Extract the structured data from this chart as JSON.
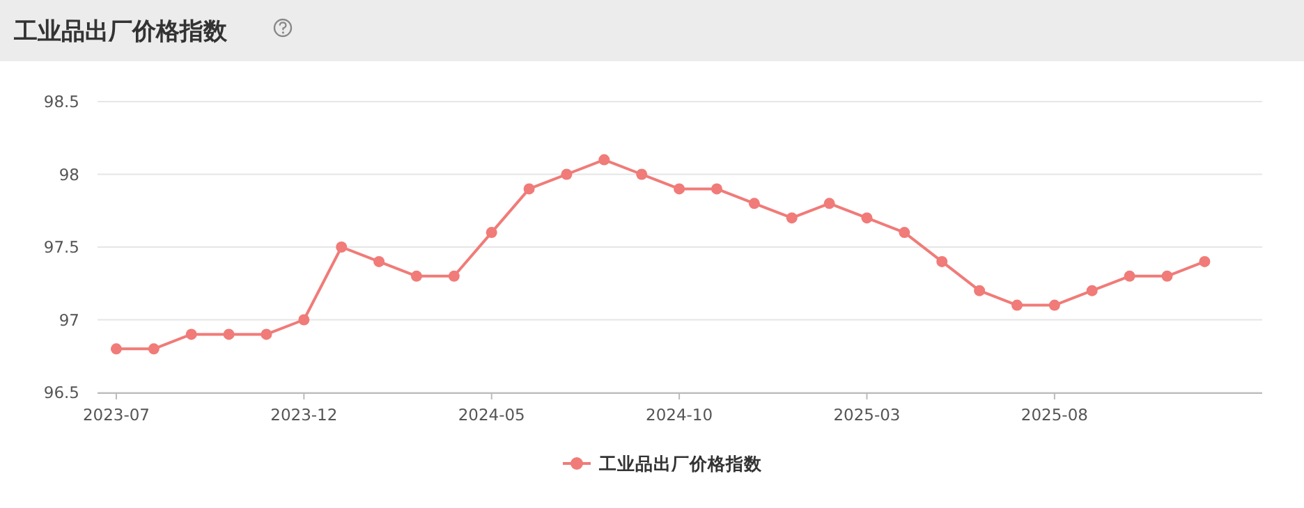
{
  "chart_data": {
    "type": "line",
    "title": "工业品出厂价格指数",
    "x": [
      "2023-07",
      "2023-08",
      "2023-09",
      "2023-10",
      "2023-11",
      "2023-12",
      "2024-01",
      "2024-02",
      "2024-03",
      "2024-04",
      "2024-05",
      "2024-06",
      "2024-07",
      "2024-08",
      "2024-09",
      "2024-10",
      "2024-11",
      "2024-12",
      "2025-01",
      "2025-02",
      "2025-03",
      "2025-04",
      "2025-05",
      "2025-06",
      "2025-07",
      "2025-08",
      "2025-09",
      "2025-10",
      "2025-11",
      "2025-12"
    ],
    "series": [
      {
        "name": "工业品出厂价格指数",
        "color": "#f07b78",
        "values": [
          96.8,
          96.8,
          96.9,
          96.9,
          96.9,
          97.0,
          97.5,
          97.4,
          97.3,
          97.3,
          97.6,
          97.9,
          98.0,
          98.1,
          98.0,
          97.9,
          97.9,
          97.8,
          97.7,
          97.8,
          97.7,
          97.6,
          97.4,
          97.2,
          97.1,
          97.1,
          97.2,
          97.3,
          97.3,
          97.4
        ]
      }
    ],
    "xlim": [
      "2023-06-16",
      "2026-01-17"
    ],
    "xticks": [
      "2023-07",
      "2023-12",
      "2024-05",
      "2024-10",
      "2025-03",
      "2025-08"
    ],
    "ylim": [
      96.5,
      98.5
    ],
    "yticks": [
      {
        "value": 96.5,
        "label": "96.5"
      },
      {
        "value": 97,
        "label": "97"
      },
      {
        "value": 97.5,
        "label": "97.5"
      },
      {
        "value": 98,
        "label": "98"
      },
      {
        "value": 98.5,
        "label": "98.5"
      }
    ],
    "grid": "y",
    "legend": "bottom",
    "marker": "circle",
    "line_style": "solid"
  }
}
